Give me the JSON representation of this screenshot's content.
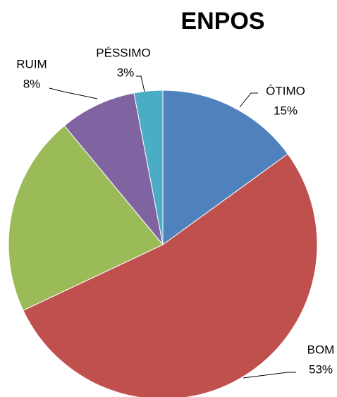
{
  "chart_data": {
    "type": "pie",
    "title": "ENPOS",
    "categories": [
      "ÓTIMO",
      "BOM",
      null,
      "RUIM",
      "PÉSSIMO"
    ],
    "values": [
      15,
      53,
      21,
      8,
      3
    ],
    "value_labels": [
      "15%",
      "53%",
      null,
      "8%",
      "3%"
    ],
    "colors": [
      "#4f81bd",
      "#c0504d",
      "#9bbb59",
      "#8064a2",
      "#4bacc6"
    ]
  }
}
